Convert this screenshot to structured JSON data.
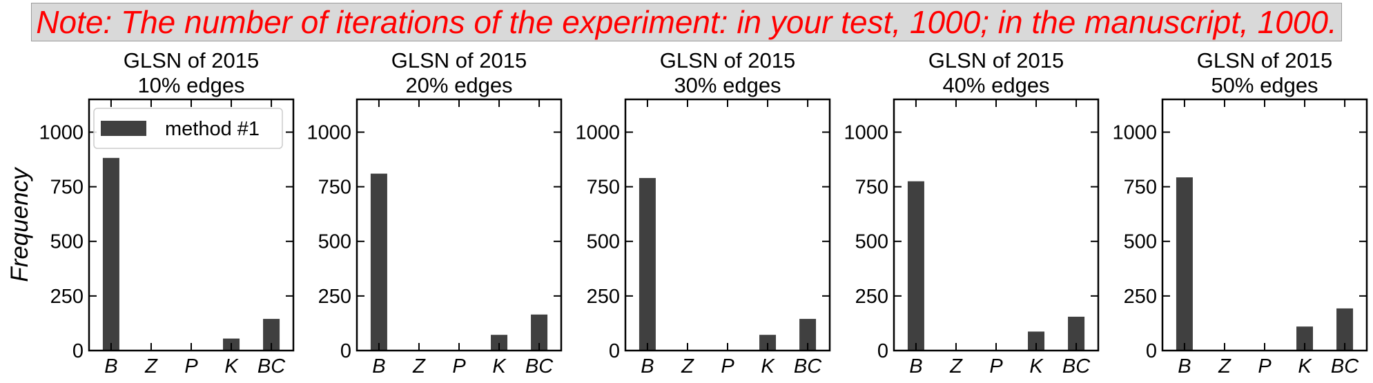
{
  "note": "Note: The number of iterations of the experiment: in your test, 1000; in the manuscript, 1000.",
  "colors": {
    "note_text": "#ff0000",
    "note_bg": "#d9d9d9",
    "bar": "#404040",
    "axes": "#000000"
  },
  "chart_data": [
    {
      "type": "bar",
      "title": "GLSN of 2015\n10% edges",
      "categories": [
        "B",
        "Z",
        "P",
        "K",
        "BC"
      ],
      "series": [
        {
          "name": "method #1",
          "values": [
            882,
            0,
            0,
            55,
            145
          ]
        }
      ],
      "xlabel": "",
      "ylabel": "Frequency",
      "ylim": [
        0,
        1150
      ],
      "yticks": [
        0,
        250,
        500,
        750,
        1000
      ],
      "legend": "top-left",
      "grid": false
    },
    {
      "type": "bar",
      "title": "GLSN of 2015\n20% edges",
      "categories": [
        "B",
        "Z",
        "P",
        "K",
        "BC"
      ],
      "series": [
        {
          "name": "method #1",
          "values": [
            810,
            0,
            0,
            72,
            165
          ]
        }
      ],
      "xlabel": "",
      "ylabel": "",
      "ylim": [
        0,
        1150
      ],
      "yticks": [
        0,
        250,
        500,
        750,
        1000
      ],
      "grid": false
    },
    {
      "type": "bar",
      "title": "GLSN of 2015\n30% edges",
      "categories": [
        "B",
        "Z",
        "P",
        "K",
        "BC"
      ],
      "series": [
        {
          "name": "method #1",
          "values": [
            790,
            0,
            0,
            72,
            145
          ]
        }
      ],
      "xlabel": "",
      "ylabel": "",
      "ylim": [
        0,
        1150
      ],
      "yticks": [
        0,
        250,
        500,
        750,
        1000
      ],
      "grid": false
    },
    {
      "type": "bar",
      "title": "GLSN of 2015\n40% edges",
      "categories": [
        "B",
        "Z",
        "P",
        "K",
        "BC"
      ],
      "series": [
        {
          "name": "method #1",
          "values": [
            775,
            0,
            0,
            87,
            155
          ]
        }
      ],
      "xlabel": "",
      "ylabel": "",
      "ylim": [
        0,
        1150
      ],
      "yticks": [
        0,
        250,
        500,
        750,
        1000
      ],
      "grid": false
    },
    {
      "type": "bar",
      "title": "GLSN of 2015\n50% edges",
      "categories": [
        "B",
        "Z",
        "P",
        "K",
        "BC"
      ],
      "series": [
        {
          "name": "method #1",
          "values": [
            793,
            0,
            0,
            110,
            193
          ]
        }
      ],
      "xlabel": "",
      "ylabel": "",
      "ylim": [
        0,
        1150
      ],
      "yticks": [
        0,
        250,
        500,
        750,
        1000
      ],
      "grid": false
    }
  ]
}
